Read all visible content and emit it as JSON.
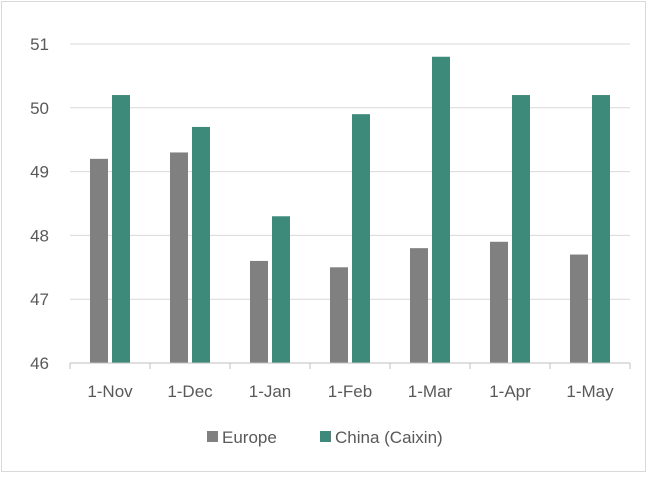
{
  "chart_data": {
    "type": "bar",
    "categories": [
      "1-Nov",
      "1-Dec",
      "1-Jan",
      "1-Feb",
      "1-Mar",
      "1-Apr",
      "1-May"
    ],
    "series": [
      {
        "name": "Europe",
        "color": "#808080",
        "values": [
          49.2,
          49.3,
          47.6,
          47.5,
          47.8,
          47.9,
          47.7
        ]
      },
      {
        "name": "China (Caixin)",
        "color": "#3e8a7a",
        "values": [
          50.2,
          49.7,
          48.3,
          49.9,
          50.8,
          50.2,
          50.2
        ]
      }
    ],
    "ylim": [
      46,
      51
    ],
    "yticks": [
      "46",
      "47",
      "48",
      "49",
      "50",
      "51"
    ],
    "grid": true,
    "legend_position": "bottom"
  }
}
